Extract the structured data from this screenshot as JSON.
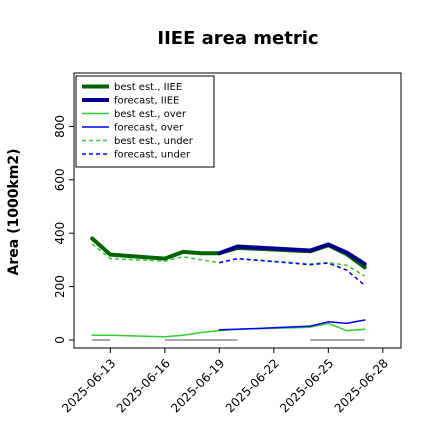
{
  "chart_data": {
    "type": "line",
    "title": "IIEE area metric",
    "ylabel": "Area (1000km2)",
    "xlabel": "",
    "ylim": [
      -30,
      1000
    ],
    "yticks": [
      0,
      200,
      400,
      600,
      800
    ],
    "ytick_labels": [
      "0",
      "200",
      "400",
      "600",
      "800"
    ],
    "xlim": [
      "2025-06-11",
      "2025-06-29"
    ],
    "xticks": [
      "2025-06-13",
      "2025-06-16",
      "2025-06-19",
      "2025-06-22",
      "2025-06-25",
      "2025-06-28"
    ],
    "xtick_labels": [
      "2025-06-13",
      "2025-06-16",
      "2025-06-19",
      "2025-06-22",
      "2025-06-25",
      "2025-06-28"
    ],
    "highlighted_xtick": "2025-06-19",
    "highlight_color": "#2e8b2e",
    "grid": false,
    "legend_position": "upper-left",
    "series": [
      {
        "name": "best est., IIEE",
        "color": "#006400",
        "width": 4,
        "dash": "solid",
        "x": [
          "2025-06-12",
          "2025-06-13",
          "2025-06-16",
          "2025-06-17",
          "2025-06-18",
          "2025-06-19",
          "2025-06-20",
          "2025-06-24",
          "2025-06-25",
          "2025-06-26",
          "2025-06-27"
        ],
        "y": [
          380,
          320,
          305,
          330,
          325,
          325,
          345,
          332,
          355,
          322,
          272
        ]
      },
      {
        "name": "forecast, IIEE",
        "color": "#00008b",
        "width": 4,
        "dash": "solid",
        "x": [
          "2025-06-19",
          "2025-06-20",
          "2025-06-24",
          "2025-06-25",
          "2025-06-26",
          "2025-06-27"
        ],
        "y": [
          325,
          350,
          335,
          358,
          328,
          285
        ]
      },
      {
        "name": "best est., over",
        "color": "#32cd32",
        "width": 1.5,
        "dash": "solid",
        "x": [
          "2025-06-12",
          "2025-06-13",
          "2025-06-16",
          "2025-06-17",
          "2025-06-18",
          "2025-06-19",
          "2025-06-20",
          "2025-06-24",
          "2025-06-25",
          "2025-06-26",
          "2025-06-27"
        ],
        "y": [
          18,
          18,
          12,
          18,
          28,
          35,
          40,
          48,
          62,
          35,
          40
        ]
      },
      {
        "name": "forecast, over",
        "color": "#0000ff",
        "width": 1.5,
        "dash": "solid",
        "x": [
          "2025-06-19",
          "2025-06-20",
          "2025-06-24",
          "2025-06-25",
          "2025-06-26",
          "2025-06-27"
        ],
        "y": [
          38,
          40,
          52,
          68,
          62,
          75
        ]
      },
      {
        "name": "best est., under",
        "color": "#32cd32",
        "width": 1.5,
        "dash": "dashed",
        "x": [
          "2025-06-12",
          "2025-06-13",
          "2025-06-16",
          "2025-06-17",
          "2025-06-18",
          "2025-06-19",
          "2025-06-20",
          "2025-06-24",
          "2025-06-25",
          "2025-06-26",
          "2025-06-27"
        ],
        "y": [
          360,
          305,
          295,
          312,
          300,
          290,
          305,
          285,
          290,
          280,
          240
        ]
      },
      {
        "name": "forecast, under",
        "color": "#0000ff",
        "width": 1.5,
        "dash": "dashed",
        "x": [
          "2025-06-19",
          "2025-06-20",
          "2025-06-24",
          "2025-06-25",
          "2025-06-26",
          "2025-06-27"
        ],
        "y": [
          290,
          305,
          282,
          288,
          262,
          205
        ]
      }
    ],
    "baseline_segments": {
      "color": "#888888",
      "y": 0,
      "ranges": [
        [
          "2025-06-12",
          "2025-06-13"
        ],
        [
          "2025-06-16",
          "2025-06-20"
        ],
        [
          "2025-06-24",
          "2025-06-27"
        ]
      ]
    }
  }
}
